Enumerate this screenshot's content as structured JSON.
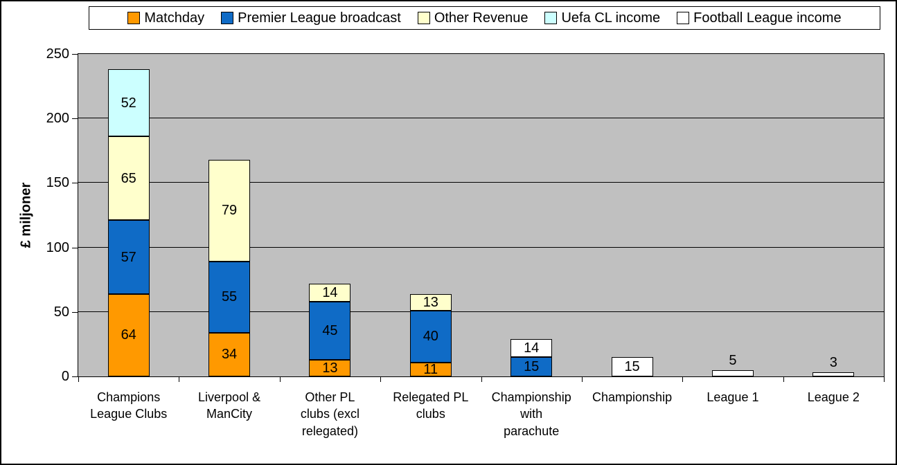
{
  "chart_data": {
    "type": "bar",
    "stacked": true,
    "title": "",
    "ylabel": "£ miljoner",
    "xlabel": "",
    "ylim": [
      0,
      250
    ],
    "yticks": [
      0,
      50,
      100,
      150,
      200,
      250
    ],
    "grid": "horizontal",
    "legend_position": "top",
    "plot_background": "#c0c0c0",
    "categories": [
      "Champions\nLeague Clubs",
      "Liverpool &\nManCity",
      "Other PL\nclubs (excl\nrelegated)",
      "Relegated PL\nclubs",
      "Championship\nwith\nparachute",
      "Championship",
      "League 1",
      "League 2"
    ],
    "series": [
      {
        "name": "Matchday",
        "color": "#ff9900",
        "values": [
          64,
          34,
          13,
          11,
          null,
          null,
          null,
          null
        ]
      },
      {
        "name": "Premier League broadcast",
        "color": "#0f6bc6",
        "values": [
          57,
          55,
          45,
          40,
          15,
          null,
          null,
          null
        ]
      },
      {
        "name": "Other Revenue",
        "color": "#ffffcc",
        "values": [
          65,
          79,
          14,
          13,
          null,
          null,
          null,
          null
        ]
      },
      {
        "name": "Uefa CL income",
        "color": "#ccffff",
        "values": [
          52,
          null,
          null,
          null,
          null,
          null,
          null,
          null
        ]
      },
      {
        "name": "Football League income",
        "color": "#ffffff",
        "values": [
          null,
          null,
          null,
          null,
          14,
          15,
          5,
          3
        ]
      }
    ]
  }
}
